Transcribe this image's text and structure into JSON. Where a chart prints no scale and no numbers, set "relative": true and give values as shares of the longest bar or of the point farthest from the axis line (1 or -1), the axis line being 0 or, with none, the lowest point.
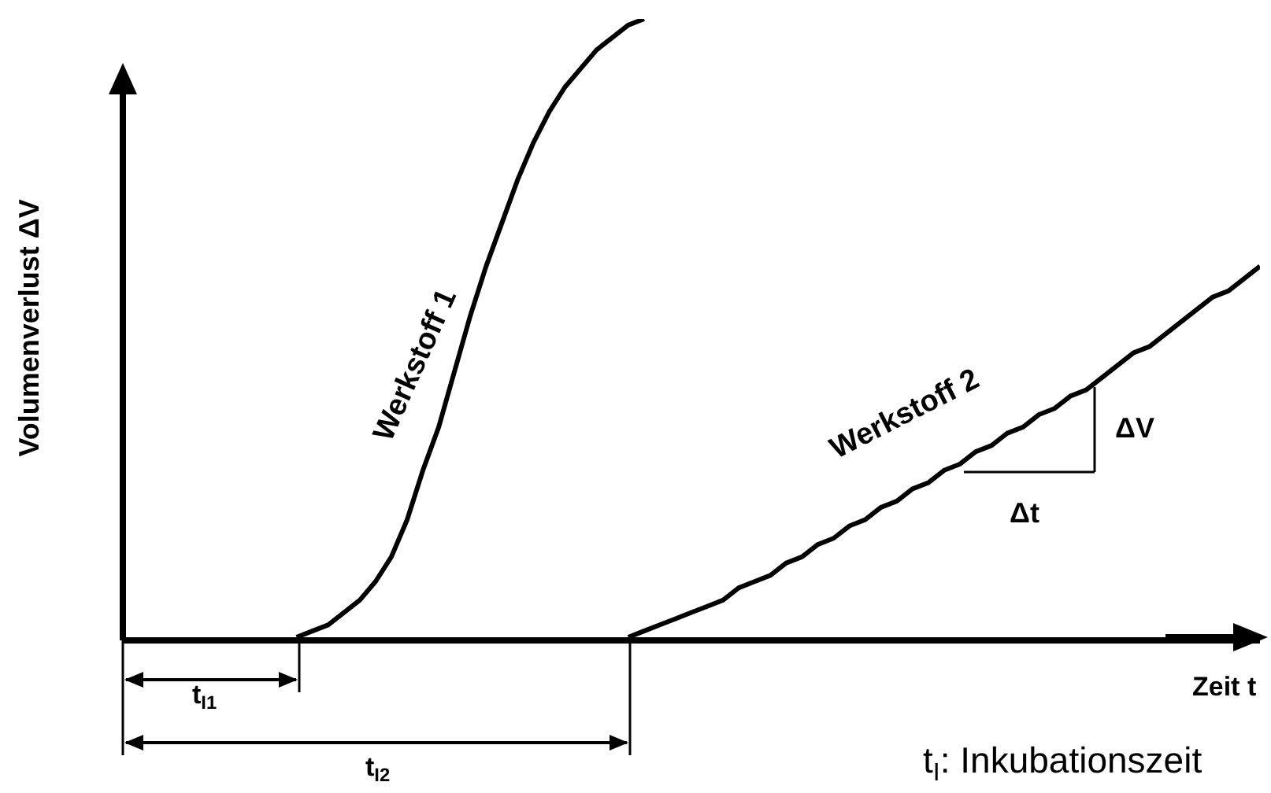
{
  "chart_data": {
    "type": "line",
    "relative": true,
    "xlabel": "Zeit t",
    "ylabel": "Volumenverlust ΔV",
    "categories": [
      null,
      null,
      null,
      null,
      null,
      null,
      null,
      null,
      null,
      null,
      null,
      null,
      null,
      null,
      null,
      null,
      null,
      null,
      null,
      null,
      null,
      null,
      null,
      null,
      null,
      null,
      null,
      null,
      null,
      null,
      null,
      null,
      null,
      null,
      null,
      null,
      null,
      null,
      null,
      null,
      null,
      null,
      null,
      null,
      null,
      null,
      null,
      null,
      null,
      null,
      null,
      null,
      null,
      null,
      null,
      null,
      null,
      null,
      null,
      null,
      null,
      null,
      null,
      null,
      null,
      null,
      null,
      null,
      null,
      null,
      null,
      null,
      null
    ],
    "series": [
      {
        "name": "Werkstoff 1",
        "color": "#000000",
        "values": [
          null,
          null,
          null,
          null,
          null,
          null,
          null,
          null,
          null,
          null,
          null,
          0,
          0.01,
          0.02,
          0.04,
          0.06,
          0.09,
          0.13,
          0.19,
          0.27,
          0.34,
          0.43,
          0.52,
          0.6,
          0.67,
          0.74,
          0.8,
          0.85,
          0.89,
          0.92,
          0.95,
          0.97,
          0.99,
          1,
          null,
          null,
          null,
          null,
          null,
          null,
          null,
          null,
          null,
          null,
          null,
          null,
          null,
          null,
          null,
          null,
          null,
          null,
          null,
          null,
          null,
          null,
          null,
          null,
          null,
          null,
          null,
          null,
          null,
          null,
          null,
          null,
          null,
          null,
          null,
          null,
          null,
          null,
          null
        ]
      },
      {
        "name": "Werkstoff 2",
        "color": "#000000",
        "values": [
          null,
          null,
          null,
          null,
          null,
          null,
          null,
          null,
          null,
          null,
          null,
          null,
          null,
          null,
          null,
          null,
          null,
          null,
          null,
          null,
          null,
          null,
          null,
          null,
          null,
          null,
          null,
          null,
          null,
          null,
          null,
          null,
          0,
          0.01,
          0.02,
          0.03,
          0.04,
          0.05,
          0.06,
          0.08,
          0.09,
          0.1,
          0.12,
          0.13,
          0.15,
          0.16,
          0.18,
          0.19,
          0.21,
          0.22,
          0.24,
          0.25,
          0.27,
          0.28,
          0.3,
          0.31,
          0.33,
          0.34,
          0.36,
          0.37,
          0.39,
          0.4,
          0.42,
          0.44,
          0.46,
          0.47,
          0.49,
          0.51,
          0.53,
          0.55,
          0.56,
          0.58,
          0.6
        ]
      }
    ],
    "annotations": [
      "t$_{I1}$",
      "t$_{I2}$",
      "ΔV",
      "Δt",
      "t$_{I}$: Inkubationszeit"
    ]
  }
}
